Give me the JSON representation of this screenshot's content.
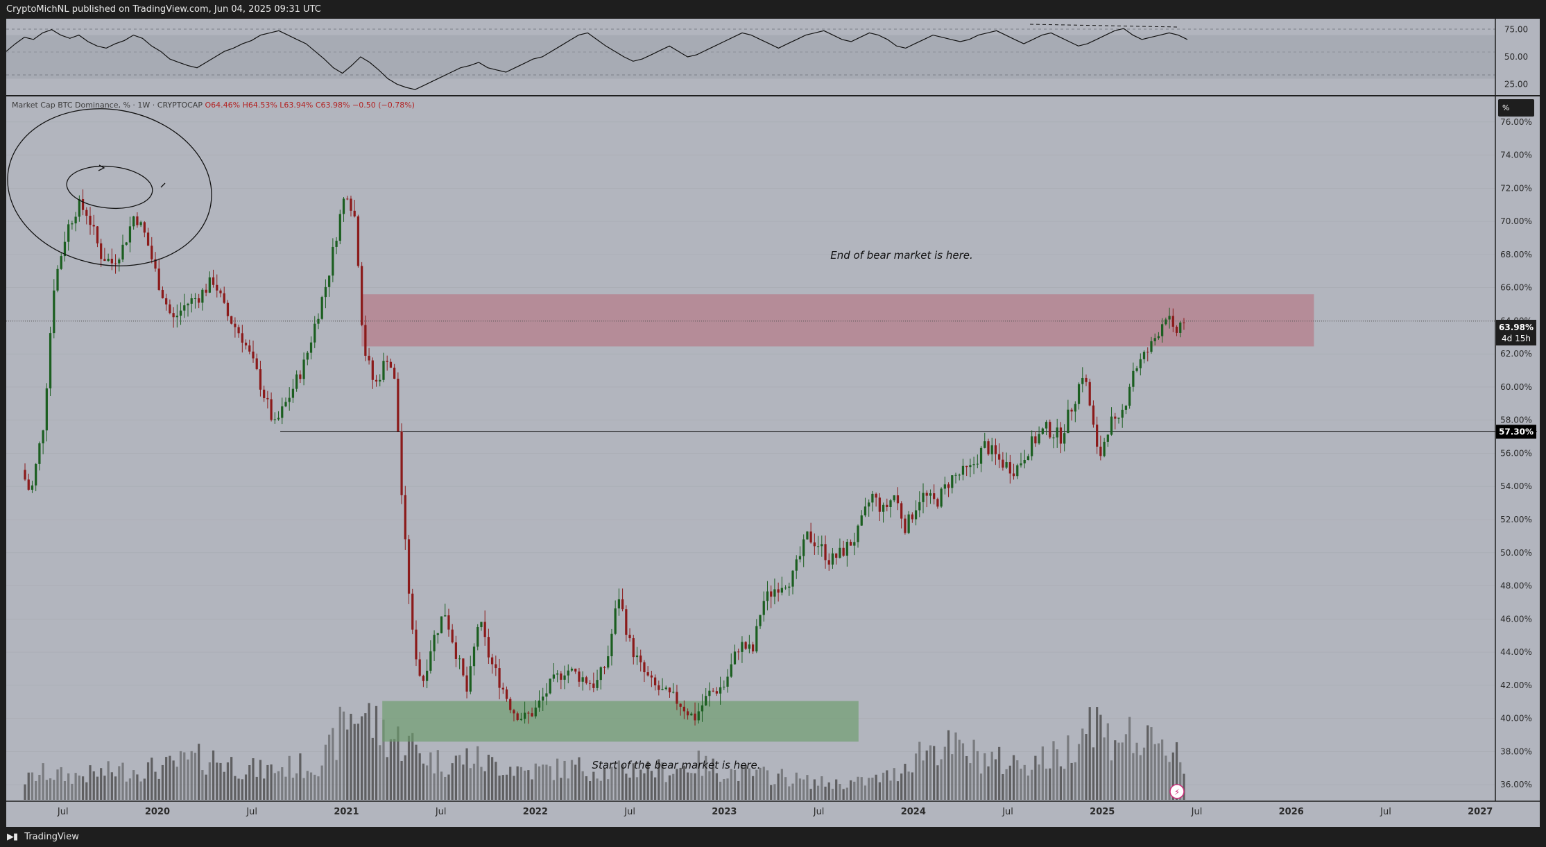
{
  "header": {
    "published_text": "CryptoMichNL published on TradingView.com, Jun 04, 2025 09:31 UTC"
  },
  "footer": {
    "brand": "TradingView",
    "logo_icon": "tradingview-logo-icon"
  },
  "legend": {
    "symbol": "Market Cap BTC Dominance, % · 1W · CRYPTOCAP",
    "open": "O64.46%",
    "high": "H64.53%",
    "low": "L63.94%",
    "close": "C63.98%",
    "change": "−0.50 (−0.78%)"
  },
  "price_scale_unit": "%",
  "colors": {
    "background": "#b2b5be",
    "up": "#1b5e20",
    "down": "#8b1a1a",
    "resistance_zone": "#b85c6b",
    "support_zone": "#6b9c6b",
    "volume": "#4a4a4a"
  },
  "chart_data": [
    {
      "type": "line",
      "name": "rsi-panel",
      "title": "",
      "ylim": [
        15,
        85
      ],
      "y_ticks": [
        "75.00",
        "50.00",
        "25.00"
      ],
      "band": [
        30,
        70
      ],
      "grid": true,
      "series": [
        {
          "values": [
            55,
            62,
            68,
            66,
            72,
            75,
            70,
            67,
            70,
            64,
            60,
            58,
            62,
            65,
            70,
            67,
            60,
            55,
            48,
            45,
            42,
            40,
            45,
            50,
            55,
            58,
            62,
            65,
            70,
            72,
            74,
            70,
            66,
            62,
            55,
            48,
            40,
            35,
            42,
            50,
            45,
            38,
            30,
            25,
            22,
            20,
            24,
            28,
            32,
            36,
            40,
            42,
            45,
            40,
            38,
            36,
            40,
            44,
            48,
            50,
            55,
            60,
            65,
            70,
            72,
            66,
            60,
            55,
            50,
            46,
            48,
            52,
            56,
            60,
            55,
            50,
            52,
            56,
            60,
            64,
            68,
            72,
            70,
            66,
            62,
            58,
            62,
            66,
            70,
            72,
            74,
            70,
            66,
            64,
            68,
            72,
            70,
            66,
            60,
            58,
            62,
            66,
            70,
            68,
            66,
            64,
            66,
            70,
            72,
            74,
            70,
            66,
            62,
            66,
            70,
            72,
            68,
            64,
            60,
            62,
            66,
            70,
            74,
            76,
            70,
            66,
            68,
            70,
            72,
            70,
            66
          ]
        }
      ],
      "annotations": [
        {
          "type": "dashed-divergence-line"
        }
      ]
    },
    {
      "type": "candlestick",
      "name": "btc-dominance",
      "title": "",
      "xlabel": "",
      "ylabel": "",
      "ylim": [
        35.0,
        77.5
      ],
      "y_ticks": [
        "76.00%",
        "74.00%",
        "72.00%",
        "70.00%",
        "68.00%",
        "66.00%",
        "64.00%",
        "62.00%",
        "60.00%",
        "58.00%",
        "56.00%",
        "54.00%",
        "52.00%",
        "50.00%",
        "48.00%",
        "46.00%",
        "44.00%",
        "42.00%",
        "40.00%",
        "38.00%",
        "36.00%"
      ],
      "x_ticks": [
        "Jul",
        "2020",
        "Jul",
        "2021",
        "Jul",
        "2022",
        "Jul",
        "2023",
        "Jul",
        "2024",
        "Jul",
        "2025",
        "Jul",
        "2026",
        "Jul",
        "2027"
      ],
      "close_path": [
        [
          2019.28,
          55.0
        ],
        [
          2019.33,
          53.5
        ],
        [
          2019.4,
          58.0
        ],
        [
          2019.45,
          66.0
        ],
        [
          2019.52,
          69.5
        ],
        [
          2019.58,
          71.0
        ],
        [
          2019.63,
          70.5
        ],
        [
          2019.7,
          68.0
        ],
        [
          2019.76,
          67.5
        ],
        [
          2019.82,
          68.5
        ],
        [
          2019.88,
          70.5
        ],
        [
          2019.94,
          69.0
        ],
        [
          2020.0,
          66.5
        ],
        [
          2020.08,
          64.0
        ],
        [
          2020.15,
          65.0
        ],
        [
          2020.22,
          65.5
        ],
        [
          2020.3,
          66.5
        ],
        [
          2020.36,
          64.5
        ],
        [
          2020.45,
          63.0
        ],
        [
          2020.52,
          61.0
        ],
        [
          2020.58,
          59.0
        ],
        [
          2020.62,
          57.6
        ],
        [
          2020.7,
          59.5
        ],
        [
          2020.78,
          61.5
        ],
        [
          2020.85,
          64.5
        ],
        [
          2020.9,
          66.5
        ],
        [
          2020.96,
          70.0
        ],
        [
          2021.0,
          72.0
        ],
        [
          2021.05,
          70.0
        ],
        [
          2021.09,
          62.5
        ],
        [
          2021.15,
          60.0
        ],
        [
          2021.22,
          62.0
        ],
        [
          2021.26,
          60.0
        ],
        [
          2021.3,
          52.0
        ],
        [
          2021.35,
          45.0
        ],
        [
          2021.4,
          42.0
        ],
        [
          2021.45,
          44.5
        ],
        [
          2021.52,
          46.5
        ],
        [
          2021.58,
          44.0
        ],
        [
          2021.64,
          41.5
        ],
        [
          2021.7,
          46.0
        ],
        [
          2021.76,
          43.5
        ],
        [
          2021.82,
          42.0
        ],
        [
          2021.88,
          40.5
        ],
        [
          2021.94,
          40.0
        ],
        [
          2022.0,
          40.5
        ],
        [
          2022.08,
          42.0
        ],
        [
          2022.16,
          43.0
        ],
        [
          2022.24,
          42.5
        ],
        [
          2022.32,
          42.0
        ],
        [
          2022.38,
          43.5
        ],
        [
          2022.44,
          47.5
        ],
        [
          2022.5,
          44.5
        ],
        [
          2022.56,
          43.0
        ],
        [
          2022.62,
          42.0
        ],
        [
          2022.68,
          41.5
        ],
        [
          2022.76,
          41.0
        ],
        [
          2022.84,
          40.0
        ],
        [
          2022.92,
          41.5
        ],
        [
          2023.0,
          42.0
        ],
        [
          2023.08,
          44.5
        ],
        [
          2023.15,
          44.0
        ],
        [
          2023.2,
          47.0
        ],
        [
          2023.28,
          48.0
        ],
        [
          2023.36,
          48.5
        ],
        [
          2023.44,
          51.0
        ],
        [
          2023.5,
          50.5
        ],
        [
          2023.56,
          49.5
        ],
        [
          2023.62,
          50.0
        ],
        [
          2023.7,
          51.0
        ],
        [
          2023.78,
          53.5
        ],
        [
          2023.84,
          52.5
        ],
        [
          2023.9,
          53.5
        ],
        [
          2023.96,
          51.5
        ],
        [
          2024.04,
          53.5
        ],
        [
          2024.12,
          53.0
        ],
        [
          2024.2,
          54.5
        ],
        [
          2024.3,
          55.0
        ],
        [
          2024.38,
          56.5
        ],
        [
          2024.46,
          55.5
        ],
        [
          2024.54,
          55.0
        ],
        [
          2024.62,
          56.5
        ],
        [
          2024.7,
          57.5
        ],
        [
          2024.78,
          57.0
        ],
        [
          2024.86,
          59.5
        ],
        [
          2024.9,
          61.0
        ],
        [
          2024.94,
          58.5
        ],
        [
          2024.98,
          55.5
        ],
        [
          2025.04,
          58.0
        ],
        [
          2025.08,
          57.5
        ],
        [
          2025.12,
          59.0
        ],
        [
          2025.16,
          61.0
        ],
        [
          2025.2,
          61.5
        ],
        [
          2025.26,
          62.5
        ],
        [
          2025.3,
          63.5
        ],
        [
          2025.34,
          64.5
        ],
        [
          2025.38,
          63.0
        ],
        [
          2025.42,
          64.0
        ],
        [
          2025.45,
          63.98
        ]
      ],
      "volume_path": [
        [
          2019.28,
          1.0
        ],
        [
          2019.4,
          1.5
        ],
        [
          2019.52,
          1.3
        ],
        [
          2019.65,
          1.4
        ],
        [
          2019.78,
          1.6
        ],
        [
          2019.92,
          1.7
        ],
        [
          2020.05,
          1.8
        ],
        [
          2020.18,
          2.2
        ],
        [
          2020.3,
          2.3
        ],
        [
          2020.42,
          1.9
        ],
        [
          2020.55,
          1.6
        ],
        [
          2020.68,
          1.8
        ],
        [
          2020.8,
          1.9
        ],
        [
          2020.9,
          2.4
        ],
        [
          2021.0,
          4.5
        ],
        [
          2021.08,
          5.0
        ],
        [
          2021.16,
          4.0
        ],
        [
          2021.25,
          3.4
        ],
        [
          2021.35,
          3.0
        ],
        [
          2021.45,
          2.2
        ],
        [
          2021.55,
          2.0
        ],
        [
          2021.65,
          2.4
        ],
        [
          2021.75,
          2.0
        ],
        [
          2021.85,
          1.9
        ],
        [
          2021.95,
          1.6
        ],
        [
          2022.1,
          1.7
        ],
        [
          2022.25,
          1.8
        ],
        [
          2022.4,
          1.5
        ],
        [
          2022.55,
          1.8
        ],
        [
          2022.7,
          1.6
        ],
        [
          2022.85,
          2.0
        ],
        [
          2023.0,
          1.6
        ],
        [
          2023.15,
          1.4
        ],
        [
          2023.3,
          1.3
        ],
        [
          2023.45,
          1.0
        ],
        [
          2023.6,
          0.9
        ],
        [
          2023.75,
          1.0
        ],
        [
          2023.9,
          1.4
        ],
        [
          2024.02,
          2.6
        ],
        [
          2024.12,
          3.0
        ],
        [
          2024.22,
          2.8
        ],
        [
          2024.35,
          2.4
        ],
        [
          2024.5,
          2.0
        ],
        [
          2024.65,
          2.2
        ],
        [
          2024.8,
          2.5
        ],
        [
          2024.9,
          4.2
        ],
        [
          2024.96,
          4.8
        ],
        [
          2025.02,
          3.4
        ],
        [
          2025.1,
          3.8
        ],
        [
          2025.18,
          3.2
        ],
        [
          2025.26,
          2.9
        ],
        [
          2025.34,
          2.6
        ],
        [
          2025.4,
          3.2
        ],
        [
          2025.45,
          0.8
        ]
      ],
      "horizontal_line": {
        "value": 57.3,
        "label": "57.30%"
      },
      "last_price": {
        "value": 63.98,
        "label": "63.98%",
        "countdown": "4d 15h"
      },
      "resistance_zone": {
        "x": [
          2021.08,
          2026.12
        ],
        "y": [
          62.45,
          65.6
        ]
      },
      "support_zone": {
        "x": [
          2021.19,
          2023.71
        ],
        "y": [
          38.6,
          41.05
        ]
      },
      "annotations": [
        {
          "text": "End of bear market is here."
        },
        {
          "text": "Start of the bear market is here."
        }
      ]
    }
  ]
}
